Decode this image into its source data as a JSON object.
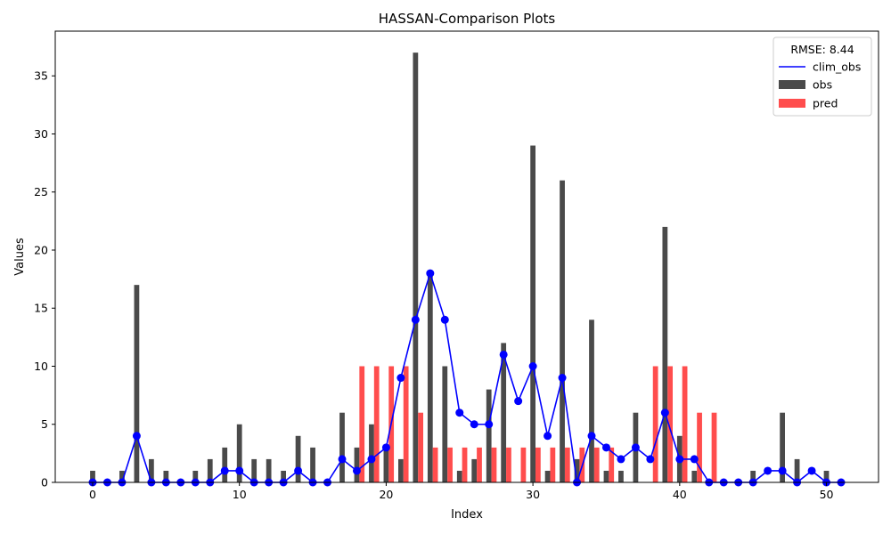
{
  "chart_data": {
    "type": "bar",
    "title": "HASSAN-Comparison Plots",
    "xlabel": "Index",
    "ylabel": "Values",
    "xlim": [
      -2.55,
      53.55
    ],
    "ylim": [
      0,
      38.85
    ],
    "x_ticks": [
      0,
      10,
      20,
      30,
      40,
      50
    ],
    "y_ticks": [
      0,
      5,
      10,
      15,
      20,
      25,
      30,
      35
    ],
    "grid": false,
    "legend": {
      "title": "RMSE: 8.44",
      "placement": "top-right",
      "entries": [
        "clim_obs",
        "obs",
        "pred"
      ]
    },
    "x": [
      0,
      1,
      2,
      3,
      4,
      5,
      6,
      7,
      8,
      9,
      10,
      11,
      12,
      13,
      14,
      15,
      16,
      17,
      18,
      19,
      20,
      21,
      22,
      23,
      24,
      25,
      26,
      27,
      28,
      29,
      30,
      31,
      32,
      33,
      34,
      35,
      36,
      37,
      38,
      39,
      40,
      41,
      42,
      43,
      44,
      45,
      46,
      47,
      48,
      49,
      50,
      51
    ],
    "series": [
      {
        "name": "obs",
        "kind": "bar",
        "color": "#4a4a4a",
        "values": [
          1,
          0,
          1,
          17,
          2,
          1,
          0,
          1,
          2,
          3,
          5,
          2,
          2,
          1,
          4,
          3,
          0,
          6,
          3,
          5,
          3,
          2,
          37,
          18,
          10,
          1,
          2,
          8,
          12,
          0,
          29,
          1,
          26,
          2,
          14,
          1,
          1,
          6,
          0,
          22,
          4,
          1,
          0,
          0,
          0,
          1,
          0,
          6,
          2,
          0,
          1,
          0
        ]
      },
      {
        "name": "pred",
        "kind": "bar",
        "color": "#ff4d4d",
        "values": [
          0,
          0,
          0,
          0,
          0,
          0,
          0,
          0,
          0,
          0,
          0,
          0,
          0,
          0,
          0,
          0,
          0,
          0,
          10,
          10,
          10,
          10,
          6,
          3,
          3,
          3,
          3,
          3,
          3,
          3,
          3,
          3,
          3,
          3,
          3,
          3,
          0,
          0,
          10,
          10,
          10,
          6,
          6,
          0,
          0,
          0,
          0,
          0,
          0,
          0,
          0,
          0
        ]
      },
      {
        "name": "clim_obs",
        "kind": "line",
        "color": "#0000ff",
        "values": [
          0,
          0,
          0,
          4,
          0,
          0,
          0,
          0,
          0,
          1,
          1,
          0,
          0,
          0,
          1,
          0,
          0,
          2,
          1,
          2,
          3,
          9,
          14,
          18,
          14,
          6,
          5,
          5,
          11,
          7,
          10,
          4,
          9,
          0,
          4,
          3,
          2,
          3,
          2,
          6,
          2,
          2,
          0,
          0,
          0,
          0,
          1,
          1,
          0,
          1,
          0,
          0
        ]
      }
    ]
  }
}
